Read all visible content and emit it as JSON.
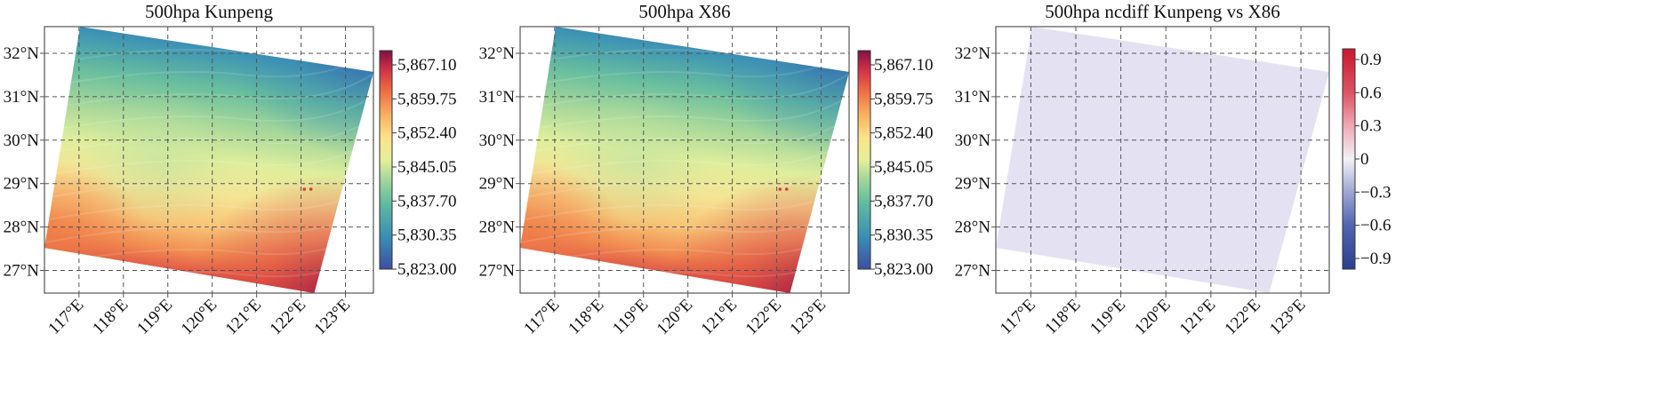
{
  "chart_data": [
    {
      "type": "heatmap",
      "title": "500hpa Kunpeng",
      "x_ticks": [
        "117°E",
        "118°E",
        "119°E",
        "120°E",
        "121°E",
        "122°E",
        "123°E"
      ],
      "y_ticks": [
        "32°N",
        "31°N",
        "30°N",
        "29°N",
        "28°N",
        "27°N"
      ],
      "colorbar": {
        "ticks": [
          "5,867.10",
          "5,859.75",
          "5,852.40",
          "5,845.05",
          "5,837.70",
          "5,830.35",
          "5,823.00"
        ],
        "min": 5823.0,
        "max": 5870.0,
        "colormap": "spectral"
      },
      "field": "gradient-high-northeast-low-southeast-high"
    },
    {
      "type": "heatmap",
      "title": "500hpa X86",
      "x_ticks": [
        "117°E",
        "118°E",
        "119°E",
        "120°E",
        "121°E",
        "122°E",
        "123°E"
      ],
      "y_ticks": [
        "32°N",
        "31°N",
        "30°N",
        "29°N",
        "28°N",
        "27°N"
      ],
      "colorbar": {
        "ticks": [
          "5,867.10",
          "5,859.75",
          "5,852.40",
          "5,845.05",
          "5,837.70",
          "5,830.35",
          "5,823.00"
        ],
        "min": 5823.0,
        "max": 5870.0,
        "colormap": "spectral"
      },
      "field": "gradient-high-northeast-low-southeast-high"
    },
    {
      "type": "heatmap",
      "title": "500hpa ncdiff Kunpeng vs X86",
      "x_ticks": [
        "117°E",
        "118°E",
        "119°E",
        "120°E",
        "121°E",
        "122°E",
        "123°E"
      ],
      "y_ticks": [
        "32°N",
        "31°N",
        "30°N",
        "29°N",
        "28°N",
        "27°N"
      ],
      "colorbar": {
        "ticks": [
          "0.9",
          "0.6",
          "0.3",
          "0",
          "−0.3",
          "−0.6",
          "−0.9"
        ],
        "min": -1.0,
        "max": 1.0,
        "colormap": "diverging-red-blue"
      },
      "field": "uniform-zero",
      "fill_color": "#e4e2f2"
    }
  ]
}
